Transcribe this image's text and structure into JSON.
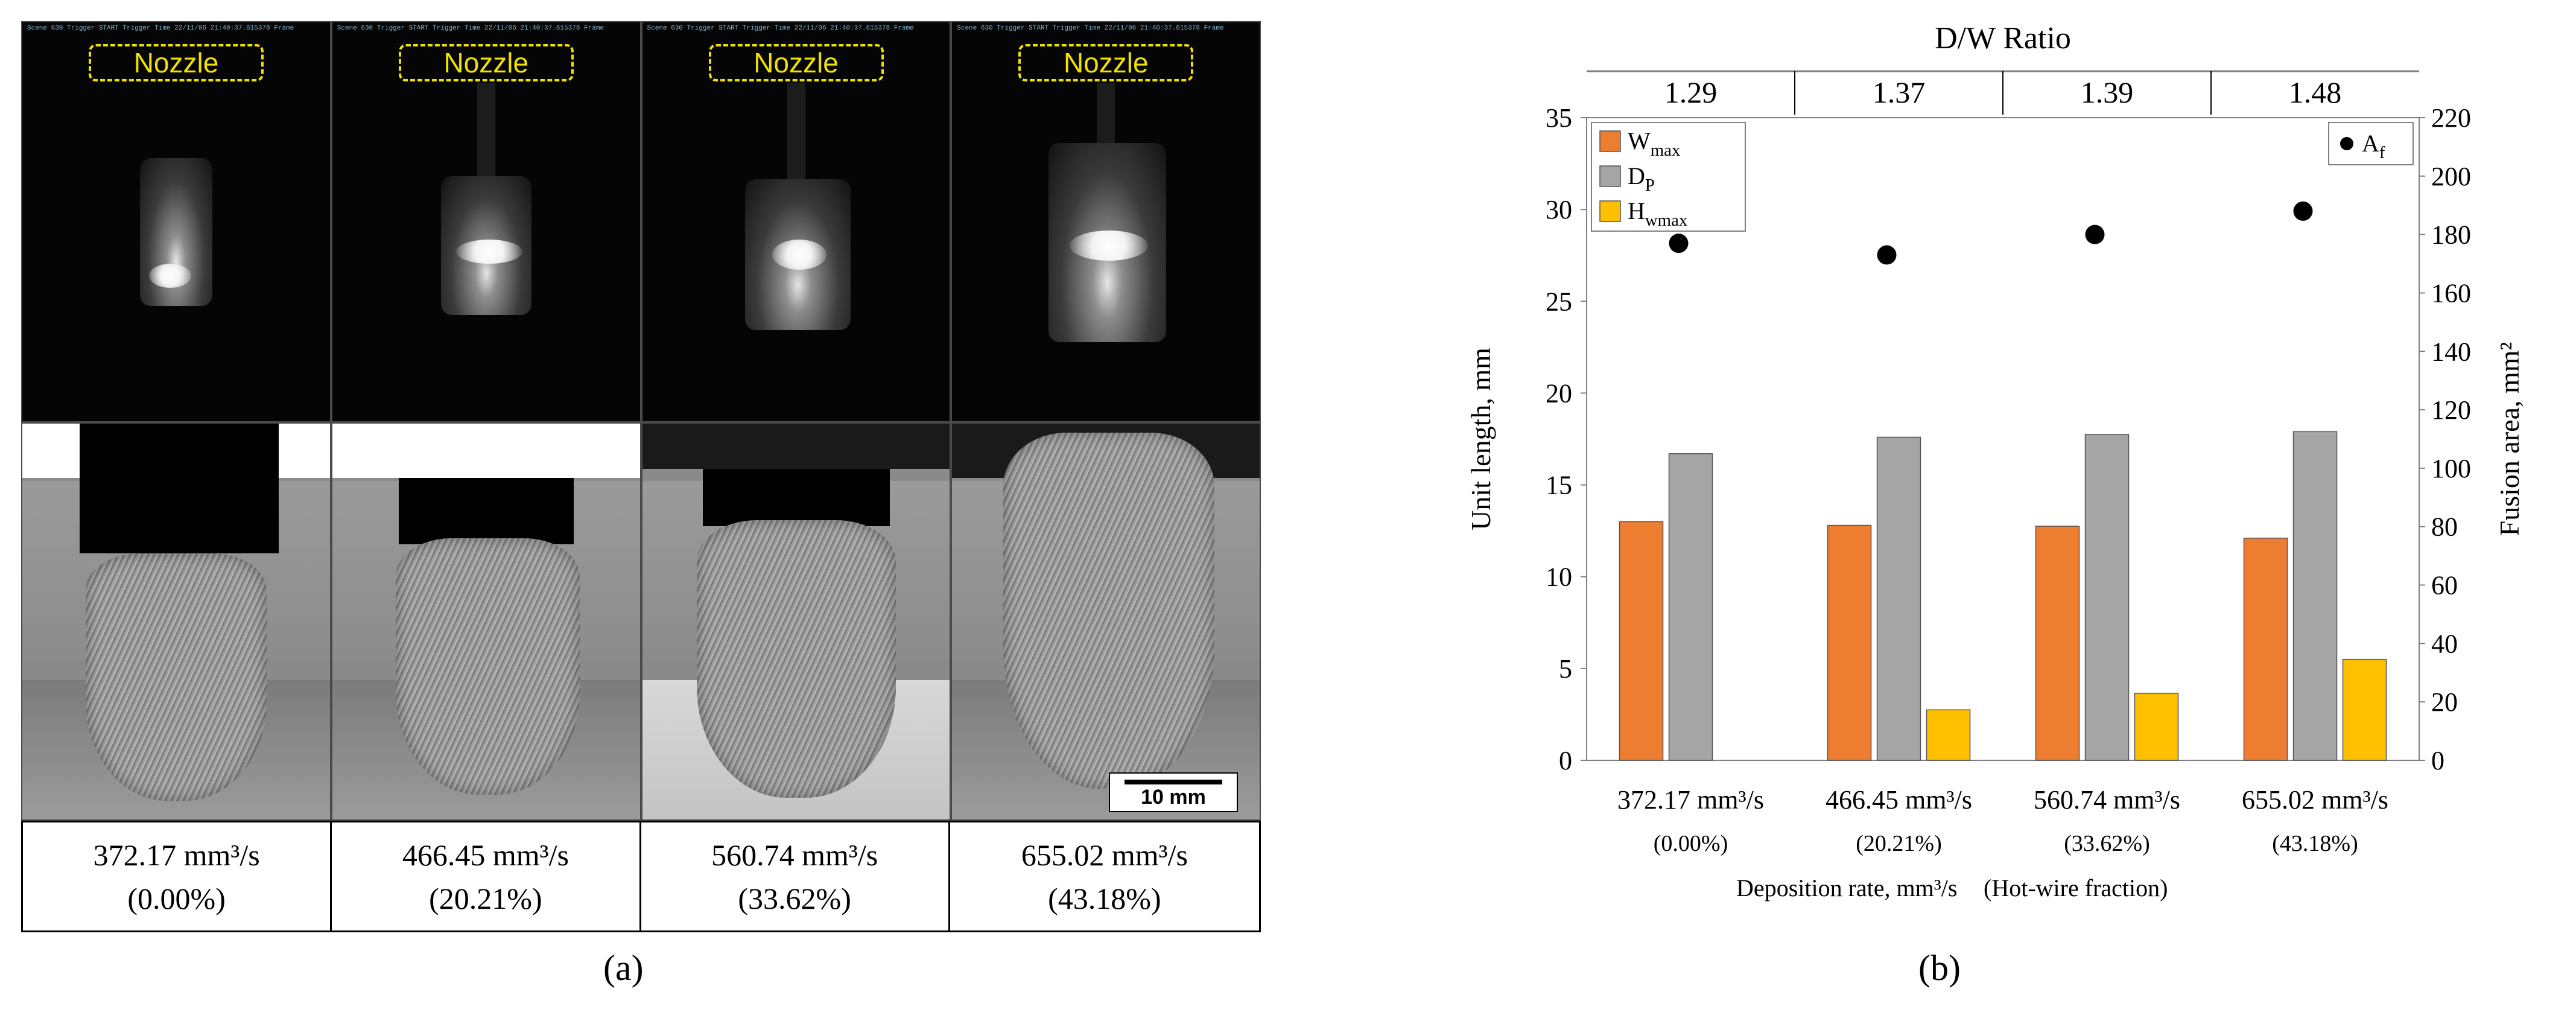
{
  "panel_a": {
    "caption": "(a)",
    "nozzle_label": "Nozzle",
    "camera_header": "Scene 630 Trigger START Trigger Time 22/11/06 21:40:37.615378 Frame",
    "scale_bar": "10 mm",
    "conditions": [
      {
        "rate": "372.17 mm³/s",
        "fraction": "(0.00%)"
      },
      {
        "rate": "466.45 mm³/s",
        "fraction": "(20.21%)"
      },
      {
        "rate": "560.74 mm³/s",
        "fraction": "(33.62%)"
      },
      {
        "rate": "655.02 mm³/s",
        "fraction": "(43.18%)"
      }
    ]
  },
  "panel_b": {
    "caption": "(b)"
  },
  "chart_data": {
    "type": "bar",
    "title": "D/W Ratio",
    "dw_ratios": [
      "1.29",
      "1.37",
      "1.39",
      "1.48"
    ],
    "categories": [
      "372.17 mm³/s",
      "466.45 mm³/s",
      "560.74 mm³/s",
      "655.02 mm³/s"
    ],
    "category_sublabels": [
      "(0.00%)",
      "(20.21%)",
      "(33.62%)",
      "(43.18%)"
    ],
    "xlabel_left": "Deposition rate, mm³/s",
    "xlabel_right": "(Hot-wire fraction)",
    "ylabel": "Unit length, mm",
    "ylabel_right": "Fusion area, mm²",
    "ylim": [
      0,
      35
    ],
    "yticks": [
      0,
      5,
      10,
      15,
      20,
      25,
      30,
      35
    ],
    "ylim_right": [
      0,
      220
    ],
    "yticks_right": [
      0,
      20,
      40,
      60,
      80,
      100,
      120,
      140,
      160,
      180,
      200,
      220
    ],
    "grid": false,
    "legend_position": "top-left",
    "series": [
      {
        "name": "W",
        "subscript": "max",
        "color": "#ed7d31",
        "values": [
          13.0,
          12.8,
          12.75,
          12.1
        ]
      },
      {
        "name": "D",
        "subscript": "P",
        "color": "#a5a5a5",
        "values": [
          16.7,
          17.6,
          17.75,
          17.9
        ]
      },
      {
        "name": "H",
        "subscript": "wmax",
        "color": "#ffc000",
        "values": [
          0,
          2.75,
          3.65,
          5.5
        ]
      }
    ],
    "scatter_series": {
      "name": "A",
      "subscript": "f",
      "axis": "right",
      "color": "#000000",
      "values": [
        177,
        173,
        180,
        188
      ]
    }
  }
}
